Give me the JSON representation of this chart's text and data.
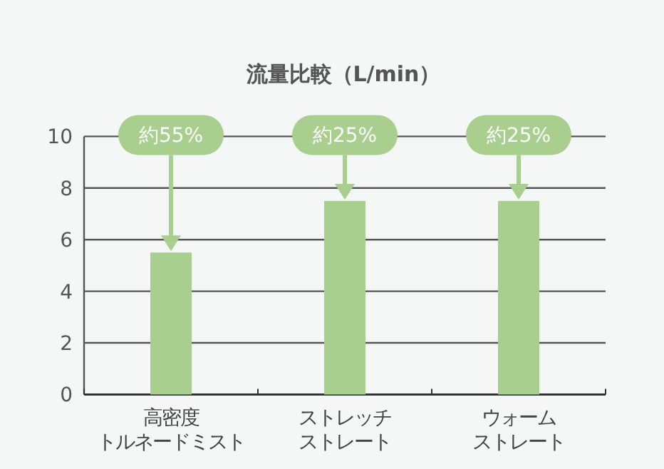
{
  "chart_data": {
    "type": "bar",
    "title": "流量比較（L/min）",
    "categories": [
      "高密度トルネードミスト",
      "ストレッチストレート",
      "ウォームストレート"
    ],
    "values": [
      5.5,
      7.5,
      7.5
    ],
    "color": "#a8cf8e",
    "ylim": [
      0,
      10
    ],
    "yticks": [
      0,
      2,
      4,
      6,
      8,
      10
    ],
    "grid": "y",
    "annotations": [
      "約55%",
      "約25%",
      "約25%"
    ]
  }
}
